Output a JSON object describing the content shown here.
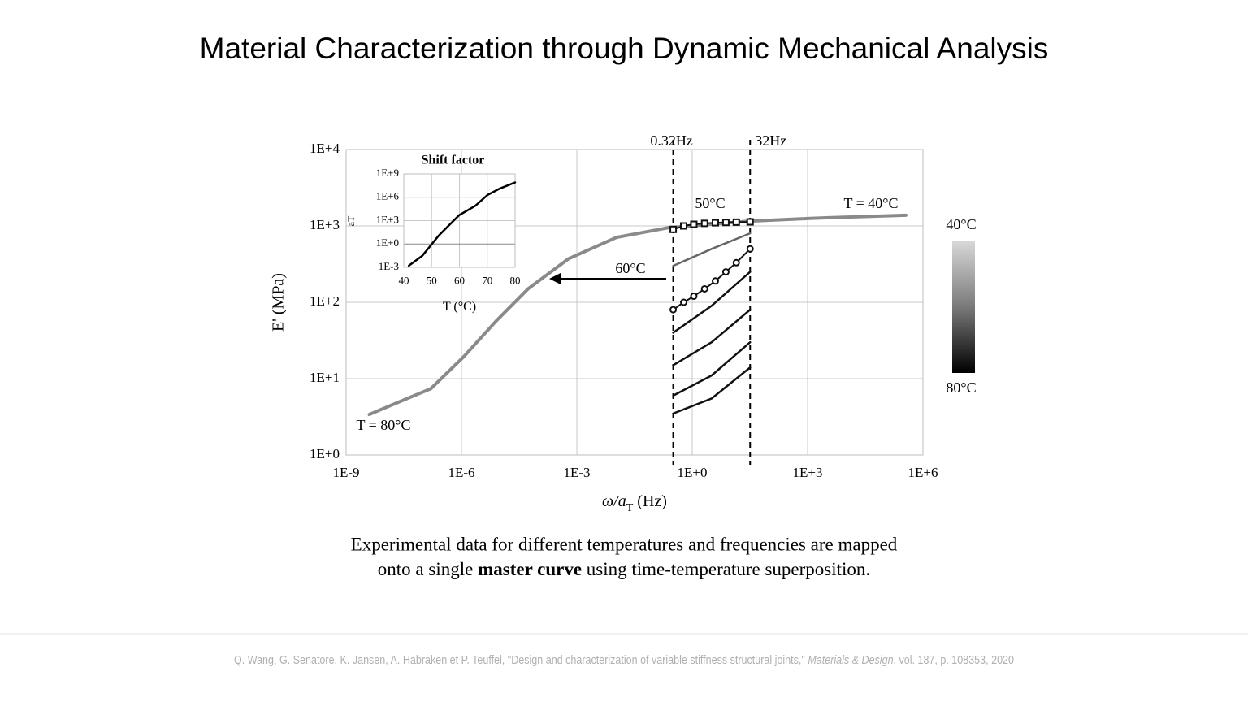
{
  "title": "Material Characterization through Dynamic Mechanical Analysis",
  "caption": [
    "Experimental data for different temperatures and frequencies are mapped",
    "onto a single ",
    "master curve",
    " using time-temperature superposition."
  ],
  "citation": [
    "Q. Wang, G. Senatore, K. Jansen, A. Habraken et P. Teuffel, \"Design and characterization of variable stiffness structural joints,\" ",
    "Materials & Design",
    ", vol. 187, p. 108353, 2020"
  ],
  "colorbar": {
    "top": "40°C",
    "bottom": "80°C"
  },
  "chart_data": [
    {
      "type": "line",
      "log_x": true,
      "log_y": true,
      "grid": true,
      "x_label": [
        "ω/a",
        "T",
        " (Hz)"
      ],
      "y_label": "E' (MPa)",
      "xlim": [
        1e-09,
        1000000.0
      ],
      "ylim": [
        1,
        10000
      ],
      "xticks": [
        {
          "value": 1e-09,
          "label": "1E-9"
        },
        {
          "value": 1e-06,
          "label": "1E-6"
        },
        {
          "value": 0.001,
          "label": "1E-3"
        },
        {
          "value": 1,
          "label": "1E+0"
        },
        {
          "value": 1000,
          "label": "1E+3"
        },
        {
          "value": 1000000.0,
          "label": "1E+6"
        }
      ],
      "yticks": [
        {
          "value": 1,
          "label": "1E+0"
        },
        {
          "value": 10,
          "label": "1E+1"
        },
        {
          "value": 100,
          "label": "1E+2"
        },
        {
          "value": 1000,
          "label": "1E+3"
        },
        {
          "value": 10000,
          "label": "1E+4"
        }
      ],
      "vlines": [
        {
          "value": 0.32,
          "label": "0.32Hz"
        },
        {
          "value": 32,
          "label": "32Hz"
        }
      ],
      "annotations": [
        "50°C",
        "60°C",
        "T = 40°C",
        "T = 80°C"
      ],
      "series": [
        {
          "color": "#8a8a8a",
          "x": [
            4e-09,
            1.6e-07,
            1.1e-06,
            8e-06,
            5.4e-05,
            0.0006,
            0.011,
            0.25,
            28,
            1350,
            360000
          ],
          "values": [
            3.4,
            7.4,
            19,
            57,
            150,
            370,
            710,
            950,
            1150,
            1260,
            1380
          ]
        },
        {
          "color": "#111111",
          "x": [
            0.32,
            3.2,
            32
          ],
          "values": [
            3.5,
            5.5,
            14
          ]
        },
        {
          "color": "#111111",
          "x": [
            0.32,
            3.2,
            32
          ],
          "values": [
            6,
            11,
            30
          ]
        },
        {
          "color": "#111111",
          "x": [
            0.32,
            3.2,
            32
          ],
          "values": [
            15,
            30,
            80
          ]
        },
        {
          "color": "#111111",
          "x": [
            0.32,
            3.2,
            32
          ],
          "values": [
            40,
            90,
            250
          ]
        },
        {
          "color": "#666666",
          "x": [
            0.32,
            3.2,
            32
          ],
          "values": [
            300,
            500,
            800
          ]
        },
        {
          "color": "#111111",
          "marker": "square",
          "x": [
            0.32,
            0.6,
            1.1,
            2.1,
            4,
            7.5,
            14,
            32
          ],
          "values": [
            900,
            1000,
            1050,
            1080,
            1100,
            1110,
            1120,
            1130
          ]
        },
        {
          "color": "#111111",
          "marker": "circle",
          "x": [
            0.32,
            0.6,
            1.1,
            2.1,
            4,
            7.5,
            14,
            32
          ],
          "values": [
            80,
            100,
            120,
            150,
            190,
            250,
            330,
            500
          ]
        }
      ]
    },
    {
      "type": "line",
      "title": "Shift factor",
      "log_y": true,
      "grid": true,
      "x_label": [
        "T (°C)"
      ],
      "y_label": "aT",
      "xlim": [
        40,
        80
      ],
      "ylim": [
        0.001,
        1000000000.0
      ],
      "xticks": [
        40,
        50,
        60,
        70,
        80
      ],
      "yticks": [
        {
          "value": 0.001,
          "label": "1E-3"
        },
        {
          "value": 1,
          "label": "1E+0"
        },
        {
          "value": 1000,
          "label": "1E+3"
        },
        {
          "value": 1000000.0,
          "label": "1E+6"
        },
        {
          "value": 1000000000.0,
          "label": "1E+9"
        }
      ],
      "series": [
        {
          "color": "#000000",
          "x": [
            41.8,
            46.7,
            52.6,
            59.9,
            65.7,
            70.1,
            74.5,
            80
          ],
          "values": [
            0.0016,
            0.032,
            12.6,
            5000,
            80000,
            2000000,
            13000000,
            80000000
          ]
        }
      ]
    }
  ]
}
